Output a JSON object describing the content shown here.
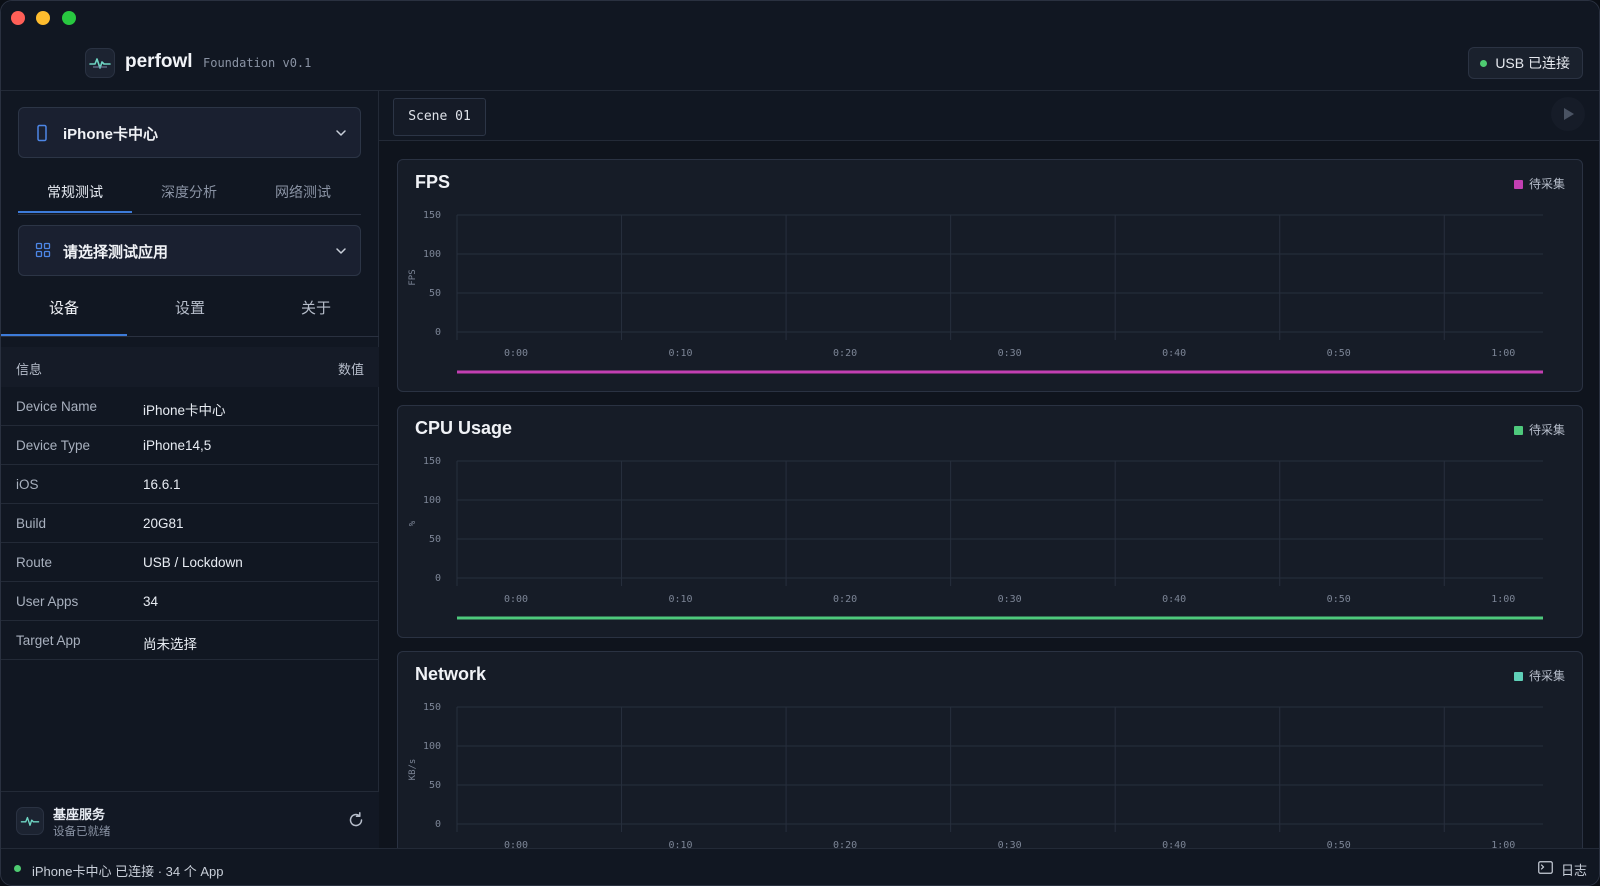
{
  "app": {
    "name": "perfowl",
    "version": "Foundation v0.1",
    "connection_badge": "USB 已连接"
  },
  "sidebar": {
    "device_select": "iPhone卡中心",
    "test_tabs": [
      {
        "label": "常规测试",
        "active": true
      },
      {
        "label": "深度分析",
        "active": false
      },
      {
        "label": "网络测试",
        "active": false
      }
    ],
    "app_select_placeholder": "请选择测试应用",
    "info_tabs": [
      {
        "label": "设备",
        "active": true
      },
      {
        "label": "设置",
        "active": false
      },
      {
        "label": "关于",
        "active": false
      }
    ],
    "info_table": {
      "header_key": "信息",
      "header_value": "数值",
      "rows": [
        {
          "key": "Device Name",
          "value": "iPhone卡中心"
        },
        {
          "key": "Device Type",
          "value": "iPhone14,5"
        },
        {
          "key": "iOS",
          "value": "16.6.1"
        },
        {
          "key": "Build",
          "value": "20G81"
        },
        {
          "key": "Route",
          "value": "USB / Lockdown"
        },
        {
          "key": "User Apps",
          "value": "34"
        },
        {
          "key": "Target App",
          "value": "尚未选择"
        }
      ]
    },
    "service": {
      "title": "基座服务",
      "subtitle": "设备已就绪"
    }
  },
  "main": {
    "scene_tab": "Scene 01"
  },
  "status_bar": {
    "text": "iPhone卡中心 已连接 · 34 个 App",
    "log_label": "日志"
  },
  "chart_data": [
    {
      "type": "line",
      "title": "FPS",
      "ylabel": "FPS",
      "legend": "待采集",
      "legend_position": "top-right",
      "color": "#c23fb2",
      "ylim": [
        0,
        150
      ],
      "yticks": [
        "150",
        "100",
        "50",
        "0"
      ],
      "xticks": [
        "0:00",
        "0:10",
        "0:20",
        "0:30",
        "0:40",
        "0:50",
        "1:00"
      ],
      "grid": true,
      "series": []
    },
    {
      "type": "line",
      "title": "CPU Usage",
      "ylabel": "%",
      "legend": "待采集",
      "legend_position": "top-right",
      "color": "#4ec97c",
      "ylim": [
        0,
        150
      ],
      "yticks": [
        "150",
        "100",
        "50",
        "0"
      ],
      "xticks": [
        "0:00",
        "0:10",
        "0:20",
        "0:30",
        "0:40",
        "0:50",
        "1:00"
      ],
      "grid": true,
      "series": []
    },
    {
      "type": "line",
      "title": "Network",
      "ylabel": "KB/s",
      "legend": "待采集",
      "legend_position": "top-right",
      "color": "#5fd0b8",
      "ylim": [
        0,
        150
      ],
      "yticks": [
        "150",
        "100",
        "50",
        "0"
      ],
      "xticks": [
        "0:00",
        "0:10",
        "0:20",
        "0:30",
        "0:40",
        "0:50",
        "1:00"
      ],
      "grid": true,
      "series": []
    }
  ]
}
